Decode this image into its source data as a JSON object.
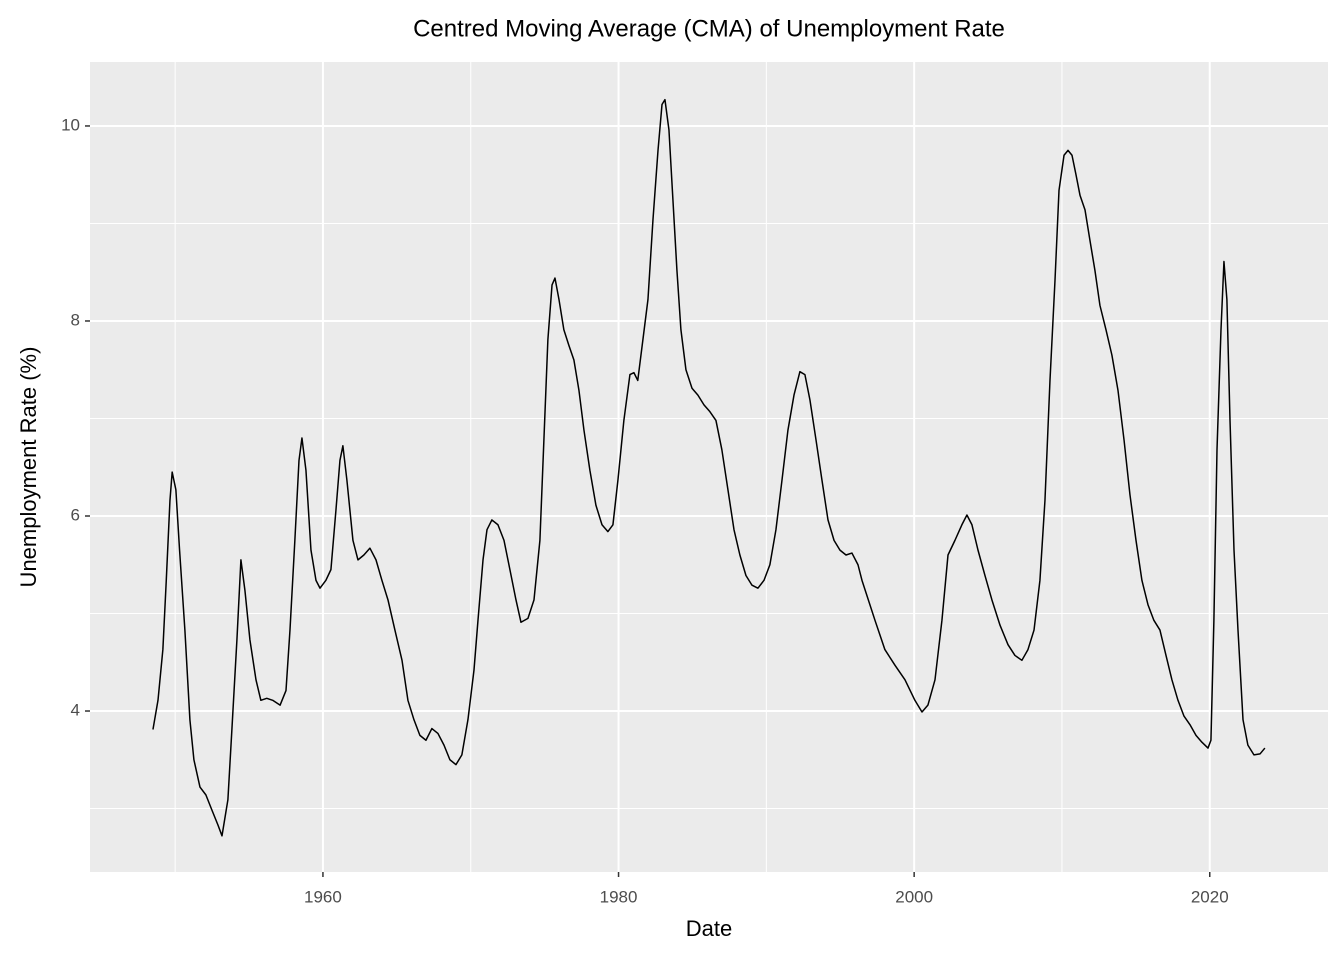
{
  "chart_data": {
    "type": "line",
    "title": "Centred Moving Average (CMA) of Unemployment Rate",
    "x_label": "Date",
    "y_label": "Unemployment Rate (%)",
    "xlim": [
      1944.24,
      2028.0
    ],
    "ylim": [
      2.349,
      10.656
    ],
    "xticks": [
      1960,
      1980,
      2000,
      2020
    ],
    "yticks": [
      4,
      6,
      8,
      10
    ],
    "xminorticks": [
      1950,
      1970,
      1990,
      2010
    ],
    "yminorticks": [
      3,
      5,
      7,
      9
    ],
    "grid": true,
    "series": [
      {
        "name": "CMA",
        "color": "#000000",
        "x": [
          1948.5,
          1948.84,
          1949.17,
          1949.4,
          1949.65,
          1949.8,
          1950.05,
          1950.3,
          1950.66,
          1951.0,
          1951.27,
          1951.68,
          1952.08,
          1952.5,
          1952.9,
          1953.17,
          1953.57,
          1953.84,
          1954.18,
          1954.45,
          1954.72,
          1955.06,
          1955.47,
          1955.8,
          1956.2,
          1956.6,
          1957.1,
          1957.5,
          1957.77,
          1958.1,
          1958.38,
          1958.58,
          1958.85,
          1959.19,
          1959.53,
          1959.8,
          1960.2,
          1960.54,
          1960.88,
          1961.15,
          1961.35,
          1961.62,
          1962.03,
          1962.37,
          1962.77,
          1963.18,
          1963.59,
          1963.99,
          1964.4,
          1964.87,
          1965.35,
          1965.75,
          1966.16,
          1966.56,
          1966.97,
          1967.37,
          1967.78,
          1968.19,
          1968.59,
          1969.0,
          1969.4,
          1969.81,
          1970.22,
          1970.49,
          1970.83,
          1971.1,
          1971.43,
          1971.84,
          1972.25,
          1972.65,
          1973.06,
          1973.4,
          1973.87,
          1974.28,
          1974.68,
          1974.95,
          1975.22,
          1975.5,
          1975.7,
          1975.97,
          1976.3,
          1976.64,
          1976.98,
          1977.32,
          1977.66,
          1978.06,
          1978.47,
          1978.88,
          1979.28,
          1979.62,
          1979.96,
          1980.36,
          1980.77,
          1981.04,
          1981.3,
          1981.65,
          1981.99,
          1982.33,
          1982.67,
          1982.94,
          1983.14,
          1983.41,
          1983.68,
          1983.95,
          1984.22,
          1984.56,
          1984.97,
          1985.37,
          1985.78,
          1986.18,
          1986.59,
          1986.99,
          1987.4,
          1987.81,
          1988.21,
          1988.62,
          1989.03,
          1989.43,
          1989.84,
          1990.24,
          1990.65,
          1991.06,
          1991.46,
          1991.87,
          1992.27,
          1992.61,
          1992.95,
          1993.36,
          1993.76,
          1994.17,
          1994.58,
          1994.98,
          1995.39,
          1995.79,
          1996.2,
          1996.47,
          1997.35,
          1998.02,
          1998.7,
          1999.38,
          2000.05,
          2000.53,
          2000.93,
          2001.41,
          2001.88,
          2002.29,
          2002.76,
          2003.23,
          2003.57,
          2003.91,
          2004.32,
          2004.79,
          2005.26,
          2005.81,
          2006.35,
          2006.82,
          2007.29,
          2007.7,
          2008.11,
          2008.51,
          2008.85,
          2009.19,
          2009.53,
          2009.8,
          2010.14,
          2010.41,
          2010.68,
          2010.95,
          2011.22,
          2011.56,
          2011.89,
          2012.23,
          2012.57,
          2012.98,
          2013.38,
          2013.79,
          2014.2,
          2014.6,
          2015.01,
          2015.41,
          2015.82,
          2016.22,
          2016.63,
          2017.04,
          2017.44,
          2017.85,
          2018.25,
          2018.66,
          2019.07,
          2019.47,
          2019.88,
          2020.08,
          2020.28,
          2020.49,
          2020.76,
          2020.96,
          2021.16,
          2021.37,
          2021.64,
          2021.91,
          2022.25,
          2022.58,
          2022.99,
          2023.4,
          2023.73
        ],
        "values": [
          3.81,
          4.11,
          4.63,
          5.34,
          6.16,
          6.45,
          6.27,
          5.65,
          4.83,
          3.91,
          3.5,
          3.22,
          3.14,
          2.98,
          2.83,
          2.72,
          3.09,
          3.81,
          4.73,
          5.55,
          5.24,
          4.73,
          4.32,
          4.11,
          4.13,
          4.11,
          4.06,
          4.21,
          4.83,
          5.75,
          6.57,
          6.8,
          6.47,
          5.65,
          5.34,
          5.26,
          5.34,
          5.45,
          6.06,
          6.57,
          6.72,
          6.37,
          5.75,
          5.55,
          5.6,
          5.67,
          5.55,
          5.34,
          5.14,
          4.83,
          4.52,
          4.11,
          3.91,
          3.75,
          3.7,
          3.82,
          3.77,
          3.65,
          3.5,
          3.45,
          3.55,
          3.91,
          4.42,
          4.93,
          5.55,
          5.86,
          5.96,
          5.91,
          5.75,
          5.45,
          5.14,
          4.91,
          4.95,
          5.14,
          5.75,
          6.78,
          7.81,
          8.37,
          8.44,
          8.22,
          7.91,
          7.75,
          7.6,
          7.29,
          6.88,
          6.47,
          6.11,
          5.91,
          5.84,
          5.91,
          6.37,
          6.98,
          7.45,
          7.47,
          7.39,
          7.81,
          8.22,
          9.04,
          9.75,
          10.22,
          10.27,
          9.96,
          9.24,
          8.52,
          7.91,
          7.5,
          7.31,
          7.24,
          7.14,
          7.07,
          6.98,
          6.68,
          6.27,
          5.86,
          5.6,
          5.39,
          5.29,
          5.26,
          5.34,
          5.5,
          5.86,
          6.37,
          6.88,
          7.24,
          7.48,
          7.45,
          7.19,
          6.78,
          6.37,
          5.96,
          5.75,
          5.65,
          5.6,
          5.62,
          5.5,
          5.34,
          4.93,
          4.63,
          4.47,
          4.32,
          4.11,
          3.99,
          4.06,
          4.32,
          4.93,
          5.6,
          5.75,
          5.91,
          6.01,
          5.91,
          5.65,
          5.39,
          5.14,
          4.88,
          4.68,
          4.57,
          4.52,
          4.63,
          4.83,
          5.34,
          6.16,
          7.39,
          8.42,
          9.34,
          9.7,
          9.75,
          9.7,
          9.5,
          9.29,
          9.14,
          8.83,
          8.52,
          8.16,
          7.91,
          7.65,
          7.29,
          6.78,
          6.22,
          5.75,
          5.34,
          5.09,
          4.93,
          4.83,
          4.57,
          4.32,
          4.11,
          3.95,
          3.86,
          3.75,
          3.68,
          3.62,
          3.7,
          4.93,
          6.68,
          7.91,
          8.61,
          8.22,
          6.98,
          5.65,
          4.83,
          3.91,
          3.65,
          3.55,
          3.56,
          3.62
        ]
      }
    ]
  }
}
